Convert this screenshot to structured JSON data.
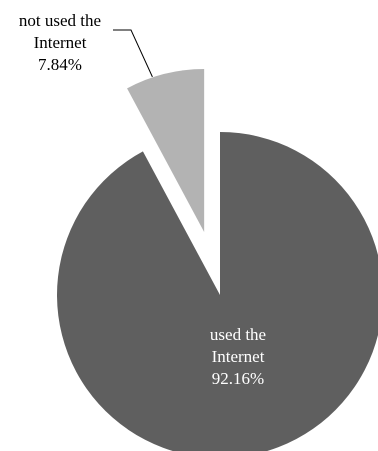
{
  "chart_data": {
    "type": "pie",
    "slices": [
      {
        "label_lines": [
          "used the",
          "Internet"
        ],
        "value": 92.16,
        "value_text": "92.16%",
        "color": "#5f5f5f",
        "label_color": "#ffffff",
        "exploded": false
      },
      {
        "label_lines": [
          "not used the",
          "Internet"
        ],
        "value": 7.84,
        "value_text": "7.84%",
        "color": "#b3b3b3",
        "label_color": "#000000",
        "exploded": true
      }
    ],
    "start_angle": "12 o'clock",
    "direction": "clockwise",
    "legend": "none",
    "leader_line_color": "#000000"
  }
}
